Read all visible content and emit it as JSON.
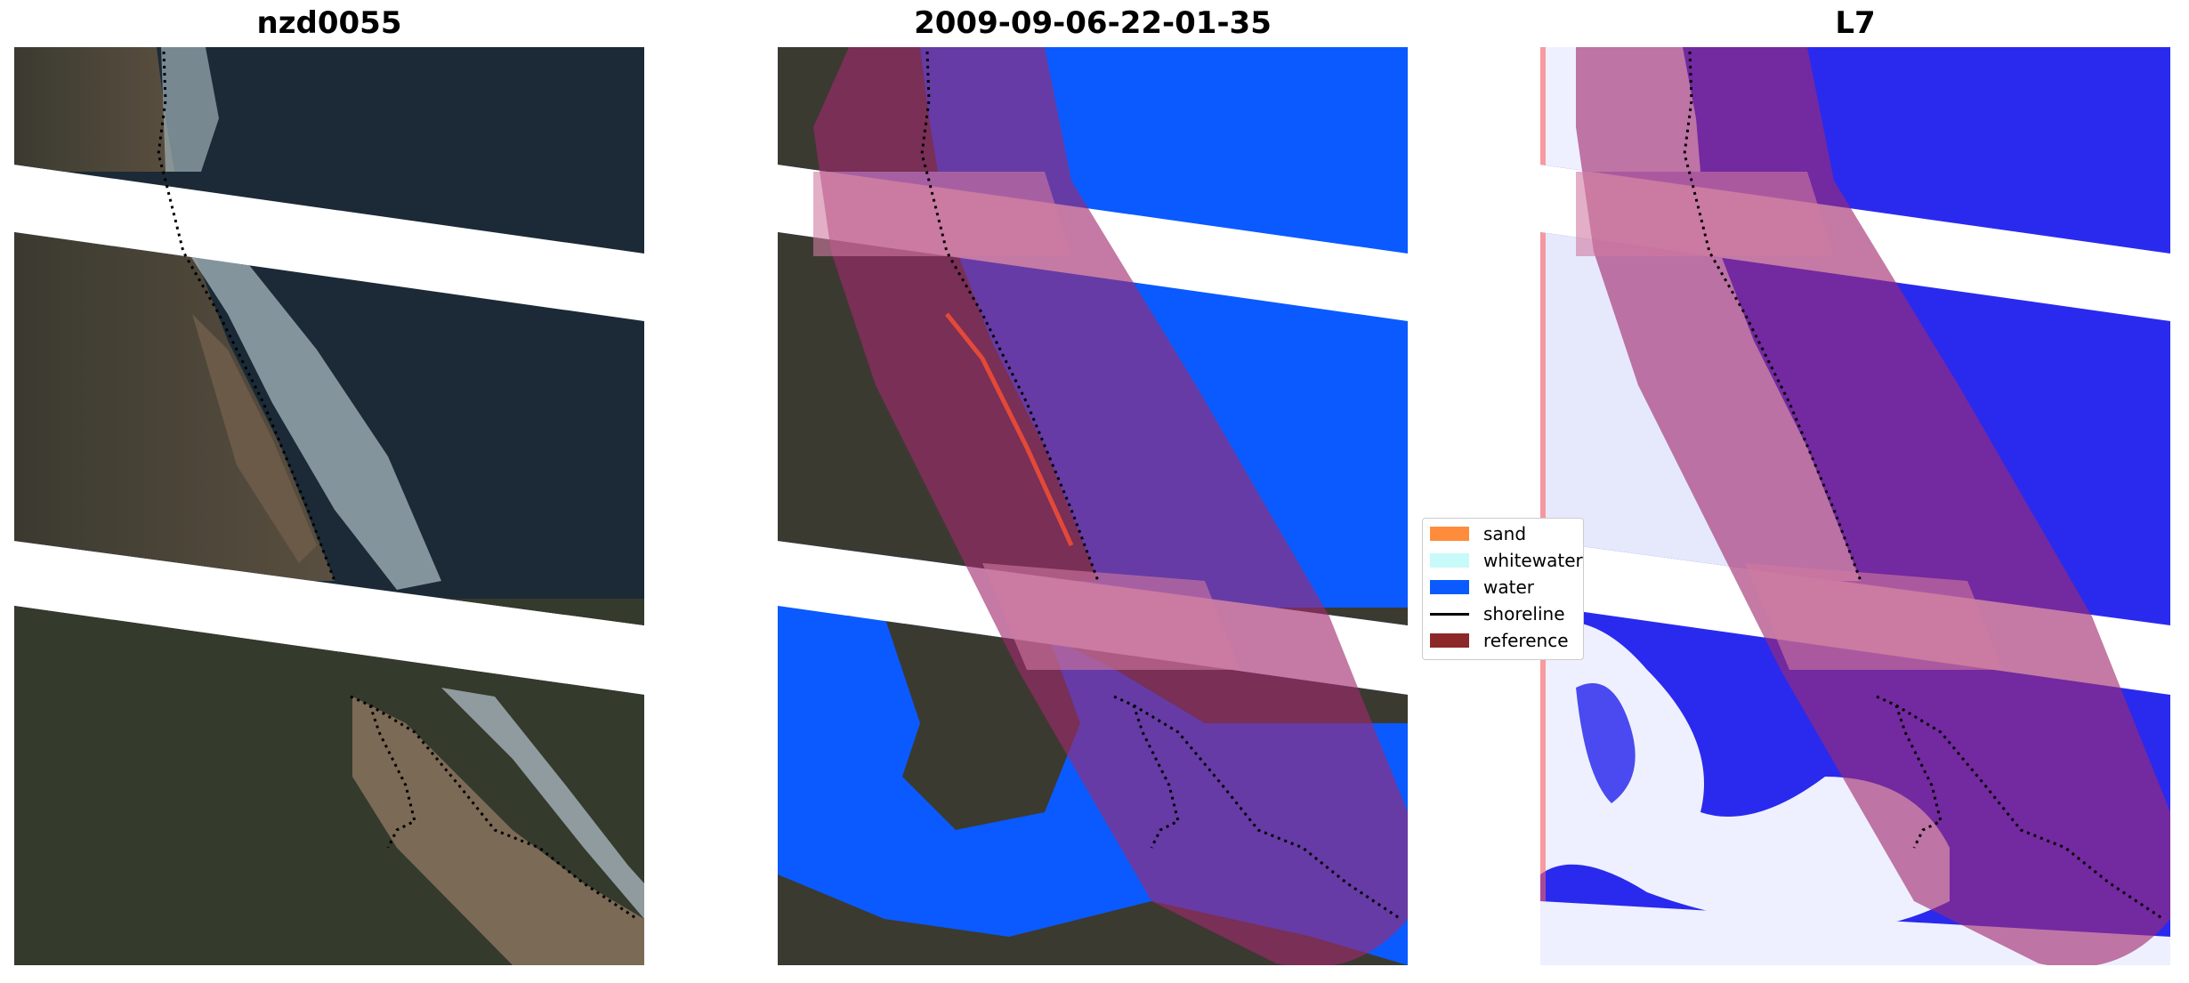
{
  "titles": {
    "panel1": "nzd0055",
    "panel2": "2009-09-06-22-01-35",
    "panel3": "L7"
  },
  "legend": {
    "items": [
      {
        "label": "sand",
        "color": "#ff8c3c"
      },
      {
        "label": "whitewater",
        "color": "#c8fafa"
      },
      {
        "label": "water",
        "color": "#0a5aff"
      },
      {
        "label": "shoreline",
        "color": "#000000"
      },
      {
        "label": "reference",
        "color": "#8c2828"
      }
    ]
  },
  "colors": {
    "ocean_dark": "#1b2a36",
    "land_dark": "#3f3b30",
    "water_class": "#0a5aff",
    "buffer_overlay": "#a0286e",
    "index_blue": "#2020f0",
    "index_white": "#eef0ff"
  }
}
